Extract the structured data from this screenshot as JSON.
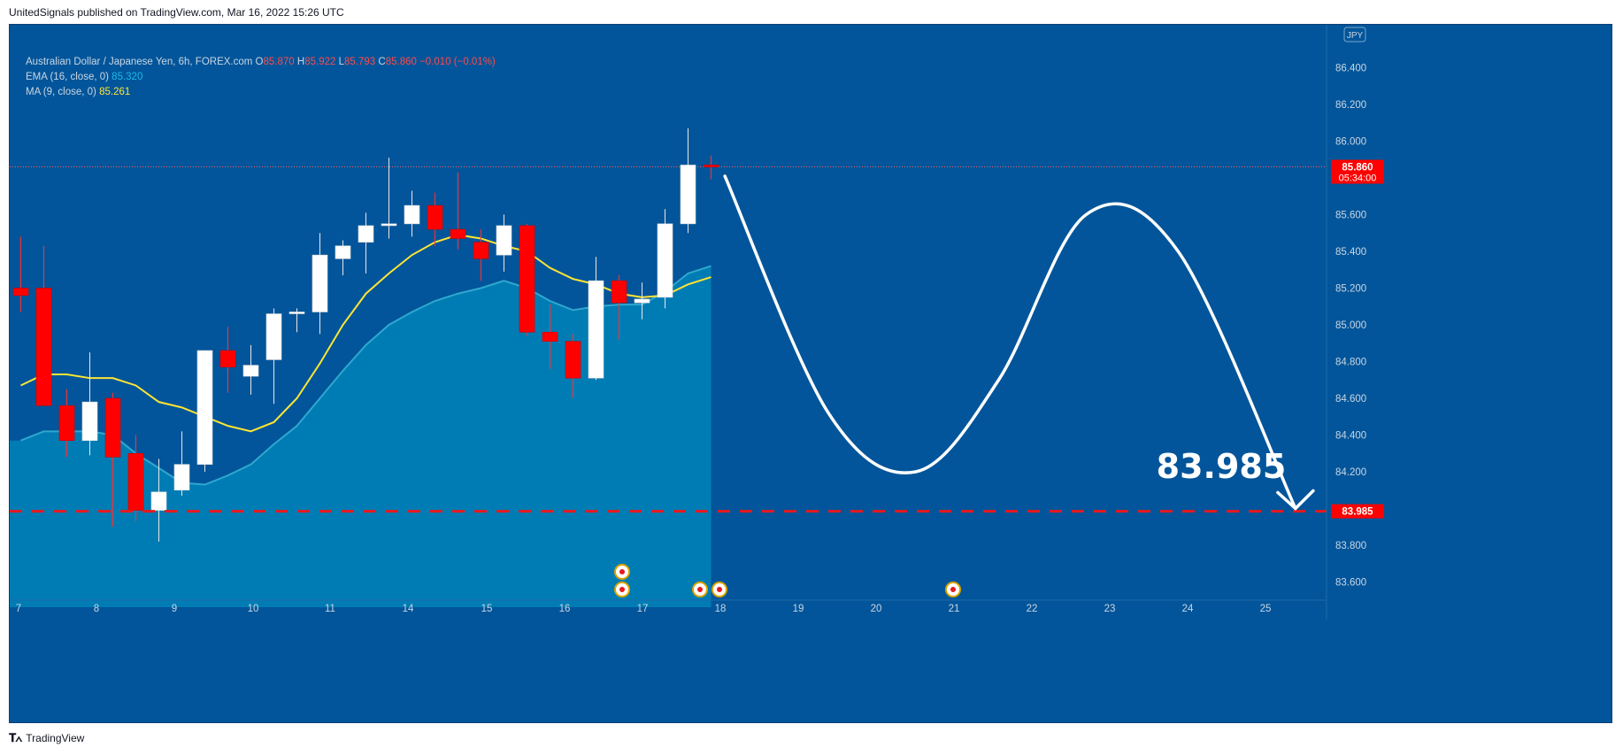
{
  "header": {
    "published": "UnitedSignals published on TradingView.com, Mar 16, 2022 15:26 UTC"
  },
  "legend": {
    "symbol": "Australian Dollar / Japanese Yen, 6h, FOREX.com",
    "o_label": "O",
    "o": "85.870",
    "h_label": "H",
    "h": "85.922",
    "l_label": "L",
    "l": "85.793",
    "c_label": "C",
    "c": "85.860",
    "change": "−0.010 (−0.01%)",
    "ema_label": "EMA (16, close, 0)",
    "ema_value": "85.320",
    "ma_label": "MA (9, close, 0)",
    "ma_value": "85.261"
  },
  "footer": {
    "brand": "TradingView"
  },
  "colors": {
    "background": "#02559a",
    "up": "#ffffff",
    "down": "#ff0000",
    "ema_fill": "#0084b8",
    "ma_line": "#ffe533",
    "price_label": "#ff0000"
  },
  "chart_data": {
    "type": "candlestick",
    "currency": "JPY",
    "ylim": [
      83.4,
      86.5
    ],
    "y_ticks": [
      86.4,
      86.2,
      86.0,
      85.8,
      85.6,
      85.4,
      85.2,
      85.0,
      84.8,
      84.6,
      84.4,
      84.2,
      84.0,
      83.8,
      83.6
    ],
    "y_tick_labels": [
      "86.400",
      "86.200",
      "86.000",
      "85.800",
      "85.600",
      "85.400",
      "85.200",
      "85.000",
      "84.800",
      "84.600",
      "84.400",
      "84.200",
      "84.000",
      "83.800",
      "83.600"
    ],
    "x_labels": [
      "7",
      "8",
      "9",
      "10",
      "11",
      "14",
      "15",
      "16",
      "17",
      "18",
      "19",
      "20",
      "21",
      "22",
      "23",
      "24",
      "25"
    ],
    "candles": [
      {
        "o": 85.2,
        "h": 85.48,
        "l": 85.07,
        "c": 85.16
      },
      {
        "o": 85.2,
        "h": 85.43,
        "l": 84.58,
        "c": 84.56
      },
      {
        "o": 84.56,
        "h": 84.65,
        "l": 84.28,
        "c": 84.37
      },
      {
        "o": 84.37,
        "h": 84.85,
        "l": 84.29,
        "c": 84.58
      },
      {
        "o": 84.6,
        "h": 84.63,
        "l": 83.9,
        "c": 84.28
      },
      {
        "o": 84.3,
        "h": 84.4,
        "l": 83.93,
        "c": 83.99
      },
      {
        "o": 83.99,
        "h": 84.27,
        "l": 83.82,
        "c": 84.09
      },
      {
        "o": 84.1,
        "h": 84.42,
        "l": 84.07,
        "c": 84.24
      },
      {
        "o": 84.24,
        "h": 84.86,
        "l": 84.2,
        "c": 84.86
      },
      {
        "o": 84.86,
        "h": 84.99,
        "l": 84.63,
        "c": 84.77
      },
      {
        "o": 84.72,
        "h": 84.89,
        "l": 84.62,
        "c": 84.78
      },
      {
        "o": 84.81,
        "h": 85.09,
        "l": 84.57,
        "c": 85.06
      },
      {
        "o": 85.07,
        "h": 85.09,
        "l": 84.96,
        "c": 85.07
      },
      {
        "o": 85.07,
        "h": 85.5,
        "l": 84.95,
        "c": 85.38
      },
      {
        "o": 85.36,
        "h": 85.46,
        "l": 85.27,
        "c": 85.43
      },
      {
        "o": 85.45,
        "h": 85.61,
        "l": 85.28,
        "c": 85.54
      },
      {
        "o": 85.54,
        "h": 85.91,
        "l": 85.47,
        "c": 85.55
      },
      {
        "o": 85.55,
        "h": 85.73,
        "l": 85.48,
        "c": 85.65
      },
      {
        "o": 85.65,
        "h": 85.72,
        "l": 85.43,
        "c": 85.52
      },
      {
        "o": 85.52,
        "h": 85.83,
        "l": 85.41,
        "c": 85.47
      },
      {
        "o": 85.45,
        "h": 85.52,
        "l": 85.24,
        "c": 85.36
      },
      {
        "o": 85.38,
        "h": 85.6,
        "l": 85.29,
        "c": 85.54
      },
      {
        "o": 85.54,
        "h": 85.55,
        "l": 84.94,
        "c": 84.96
      },
      {
        "o": 84.96,
        "h": 85.11,
        "l": 84.76,
        "c": 84.91
      },
      {
        "o": 84.91,
        "h": 84.95,
        "l": 84.6,
        "c": 84.71
      },
      {
        "o": 84.71,
        "h": 85.37,
        "l": 84.7,
        "c": 85.24
      },
      {
        "o": 85.24,
        "h": 85.27,
        "l": 84.92,
        "c": 85.12
      },
      {
        "o": 85.12,
        "h": 85.23,
        "l": 85.03,
        "c": 85.14
      },
      {
        "o": 85.15,
        "h": 85.63,
        "l": 85.09,
        "c": 85.55
      },
      {
        "o": 85.55,
        "h": 86.07,
        "l": 85.5,
        "c": 85.87
      },
      {
        "o": 85.87,
        "h": 85.922,
        "l": 85.793,
        "c": 85.86
      }
    ],
    "ma": [
      84.67,
      84.73,
      84.73,
      84.71,
      84.71,
      84.67,
      84.58,
      84.55,
      84.5,
      84.45,
      84.42,
      84.47,
      84.6,
      84.79,
      85.0,
      85.17,
      85.28,
      85.38,
      85.45,
      85.49,
      85.47,
      85.43,
      85.4,
      85.31,
      85.25,
      85.22,
      85.17,
      85.15,
      85.16,
      85.22,
      85.26
    ],
    "ema": [
      84.37,
      84.42,
      84.42,
      84.42,
      84.4,
      84.3,
      84.22,
      84.14,
      84.13,
      84.18,
      84.24,
      84.35,
      84.45,
      84.6,
      84.75,
      84.89,
      85.0,
      85.07,
      85.13,
      85.17,
      85.2,
      85.24,
      85.2,
      85.13,
      85.08,
      85.1,
      85.11,
      85.11,
      85.18,
      85.28,
      85.32
    ],
    "last_price": "85.860",
    "countdown": "05:34:00",
    "target_price": "83.985",
    "target_label": "83.985",
    "projection_path": [
      {
        "t": 30.6,
        "p": 85.81
      },
      {
        "t": 35.1,
        "p": 84.52
      },
      {
        "t": 38.9,
        "p": 84.2
      },
      {
        "t": 42.5,
        "p": 84.7
      },
      {
        "t": 46.3,
        "p": 85.6
      },
      {
        "t": 50.3,
        "p": 85.4
      },
      {
        "t": 55.4,
        "p": 84.0
      }
    ]
  }
}
